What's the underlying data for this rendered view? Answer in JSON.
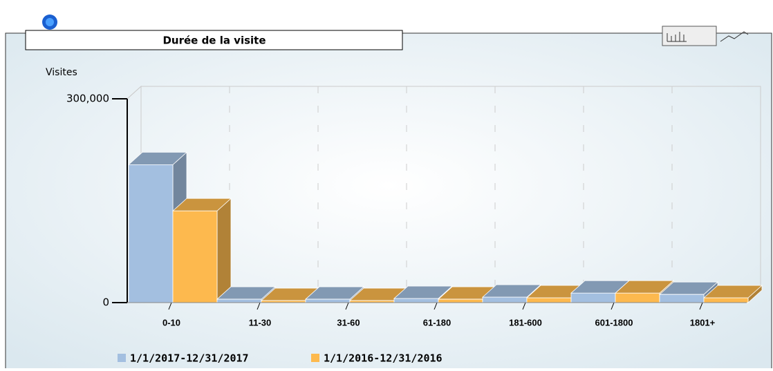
{
  "chart_data": {
    "type": "bar3d",
    "title": "Durée de la visite",
    "y_label": "Visites",
    "categories": [
      "0-10",
      "11-30",
      "31-60",
      "61-180",
      "181-600",
      "601-1800",
      "1801+"
    ],
    "series": [
      {
        "name": "1/1/2017-12/31/2017",
        "color": "#a3bfe0",
        "values": [
          203000,
          5000,
          5000,
          6000,
          8000,
          14000,
          12000
        ]
      },
      {
        "name": "1/1/2016-12/31/2016",
        "color": "#fdb94e",
        "values": [
          135000,
          3000,
          3000,
          5000,
          7000,
          14000,
          7000
        ]
      }
    ],
    "ylim": [
      0,
      300000
    ],
    "yticks": [
      0,
      {
        "value": 300000,
        "label": "300,000"
      }
    ],
    "grid": true
  }
}
